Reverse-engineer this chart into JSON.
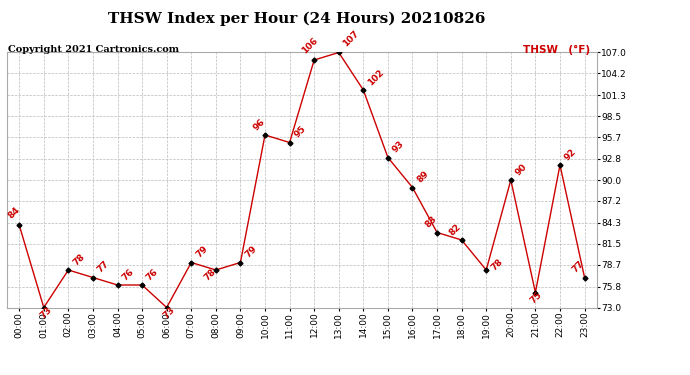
{
  "title": "THSW Index per Hour (24 Hours) 20210826",
  "copyright": "Copyright 2021 Cartronics.com",
  "legend_label": "THSW (°F)",
  "hours": [
    0,
    1,
    2,
    3,
    4,
    5,
    6,
    7,
    8,
    9,
    10,
    11,
    12,
    13,
    14,
    15,
    16,
    17,
    18,
    19,
    20,
    21,
    22,
    23
  ],
  "values": [
    84,
    73,
    78,
    77,
    76,
    76,
    73,
    79,
    78,
    79,
    96,
    95,
    106,
    107,
    102,
    93,
    89,
    83,
    82,
    78,
    90,
    75,
    92,
    77
  ],
  "x_labels": [
    "00:00",
    "01:00",
    "02:00",
    "03:00",
    "04:00",
    "05:00",
    "06:00",
    "07:00",
    "08:00",
    "09:00",
    "10:00",
    "11:00",
    "12:00",
    "13:00",
    "14:00",
    "15:00",
    "16:00",
    "17:00",
    "18:00",
    "19:00",
    "20:00",
    "21:00",
    "22:00",
    "23:00"
  ],
  "ylim": [
    73.0,
    107.0
  ],
  "yticks": [
    73.0,
    75.8,
    78.7,
    81.5,
    84.3,
    87.2,
    90.0,
    92.8,
    95.7,
    98.5,
    101.3,
    104.2,
    107.0
  ],
  "line_color": "#cc0000",
  "marker_color": "#000000",
  "label_color": "#cc0000",
  "title_color": "#000000",
  "copyright_color": "#000000",
  "legend_color": "#cc0000",
  "bg_color": "#ffffff",
  "grid_color": "#bbbbbb",
  "title_fontsize": 11,
  "label_fontsize": 6.5,
  "axis_fontsize": 6.5,
  "copyright_fontsize": 7
}
